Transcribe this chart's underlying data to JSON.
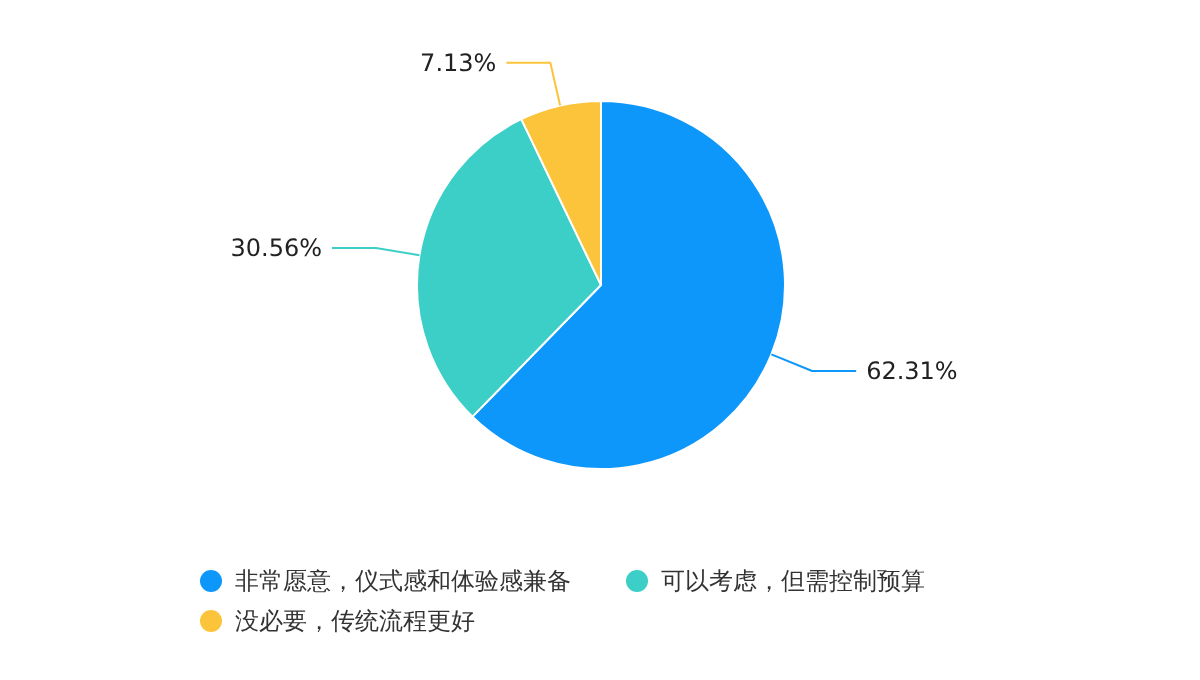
{
  "chart_data": {
    "type": "pie",
    "categories": [
      "非常愿意，仪式感和体验感兼备",
      "可以考虑，但需控制预算",
      "没必要，传统流程更好"
    ],
    "values": [
      62.31,
      30.56,
      7.13
    ],
    "colors": [
      "#0e97fb",
      "#3ccfc8",
      "#fcc43a"
    ],
    "value_labels": [
      "62.31%",
      "30.56%",
      "7.13%"
    ],
    "legend": "bottom"
  }
}
